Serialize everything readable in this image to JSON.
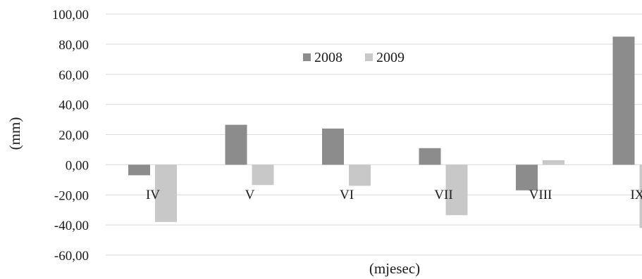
{
  "chart_data": {
    "type": "bar",
    "title": "",
    "xlabel": "(mjesec)",
    "ylabel": "(mm)",
    "categories": [
      "IV",
      "V",
      "VI",
      "VII",
      "VIII",
      "IX"
    ],
    "series": [
      {
        "name": "2008",
        "color": "#8c8c8c",
        "values": [
          -7,
          26.5,
          24,
          11,
          -17,
          85
        ]
      },
      {
        "name": "2009",
        "color": "#c8c8c8",
        "values": [
          -38,
          -13.5,
          -14,
          -33.5,
          3,
          -42
        ]
      }
    ],
    "ylim": [
      -60,
      100
    ],
    "yticks": [
      "100,00",
      "80,00",
      "60,00",
      "40,00",
      "20,00",
      "0,00",
      "-20,00",
      "-40,00",
      "-60,00"
    ],
    "ytick_values": [
      100,
      80,
      60,
      40,
      20,
      0,
      -20,
      -40,
      -60
    ],
    "grid": true,
    "legend": "top-center"
  }
}
